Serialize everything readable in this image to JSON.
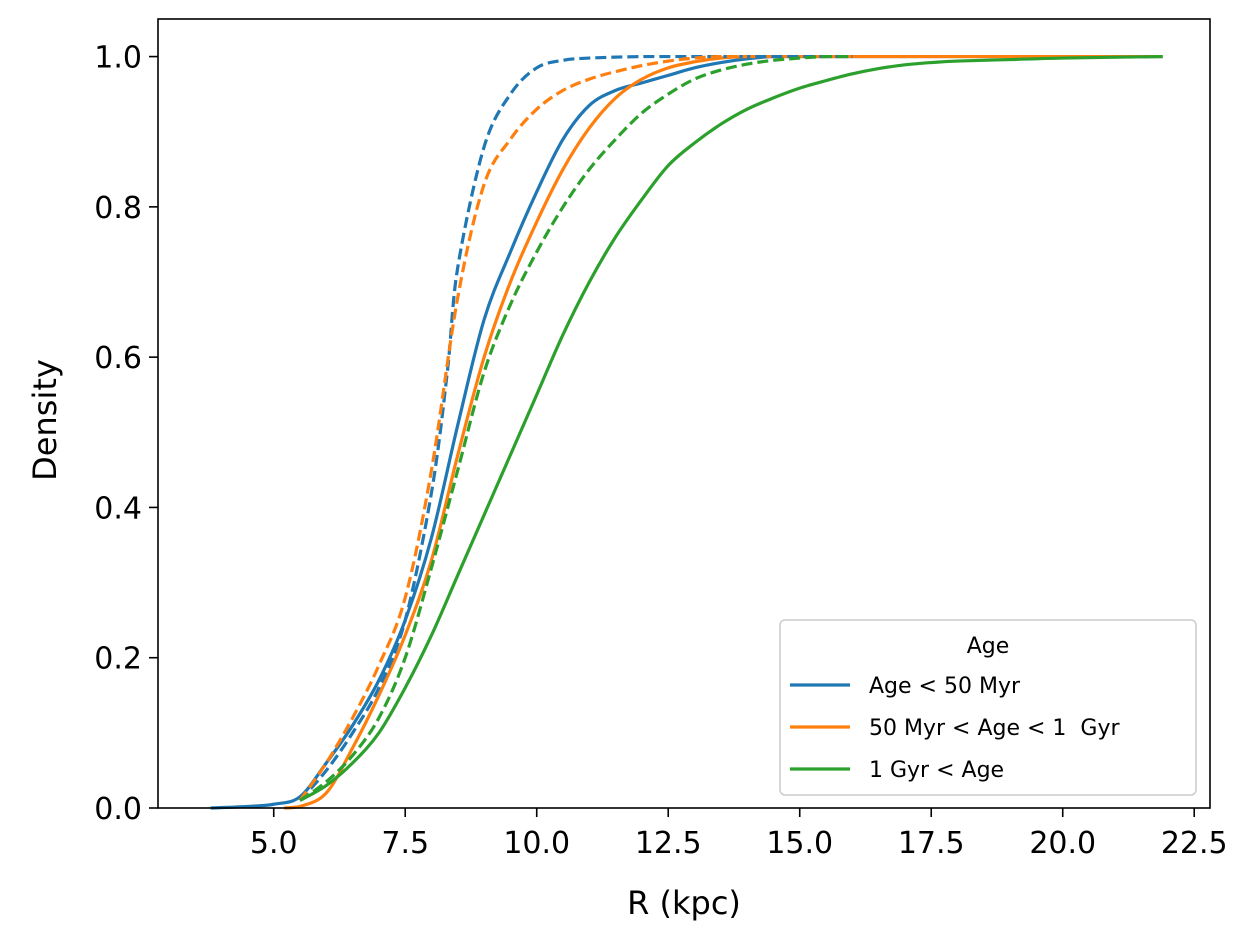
{
  "chart_data": {
    "type": "line",
    "title": "",
    "xlabel": "R (kpc)",
    "ylabel": "Density",
    "xlim": [
      2.8,
      22.8
    ],
    "ylim": [
      0.0,
      1.05
    ],
    "xticks": [
      5.0,
      7.5,
      10.0,
      12.5,
      15.0,
      17.5,
      20.0,
      22.5
    ],
    "xtick_labels": [
      "5.0",
      "7.5",
      "10.0",
      "12.5",
      "15.0",
      "17.5",
      "20.0",
      "22.5"
    ],
    "yticks": [
      0.0,
      0.2,
      0.4,
      0.6,
      0.8,
      1.0
    ],
    "ytick_labels": [
      "0.0",
      "0.2",
      "0.4",
      "0.6",
      "0.8",
      "1.0"
    ],
    "grid": false,
    "legend": {
      "title": "Age",
      "placement": "lower-right",
      "entries": [
        {
          "label": "Age < 50 Myr",
          "color": "#1f77b4"
        },
        {
          "label": "50 Myr < Age < 1  Gyr",
          "color": "#ff7f0e"
        },
        {
          "label": "1 Gyr < Age",
          "color": "#2ca02c"
        }
      ]
    },
    "series": [
      {
        "name": "Age < 50 Myr (solid)",
        "color": "#1f77b4",
        "style": "solid",
        "x": [
          3.8,
          4.5,
          5.0,
          5.5,
          6.0,
          6.5,
          7.0,
          7.5,
          8.0,
          8.5,
          9.0,
          9.5,
          10.0,
          10.5,
          11.0,
          11.5,
          12.0,
          12.5,
          13.0,
          13.5,
          14.0,
          14.5,
          15.0,
          16.0,
          18.0,
          20.0,
          21.9
        ],
        "y": [
          0.0,
          0.002,
          0.005,
          0.015,
          0.06,
          0.11,
          0.17,
          0.25,
          0.36,
          0.51,
          0.65,
          0.74,
          0.82,
          0.89,
          0.935,
          0.955,
          0.965,
          0.975,
          0.985,
          0.992,
          0.997,
          1.0,
          1.0,
          1.0,
          1.0,
          1.0,
          1.0
        ]
      },
      {
        "name": "50 Myr < Age < 1  Gyr (solid)",
        "color": "#ff7f0e",
        "style": "solid",
        "x": [
          5.2,
          5.5,
          6.0,
          6.5,
          7.0,
          7.5,
          8.0,
          8.5,
          9.0,
          9.5,
          10.0,
          10.5,
          11.0,
          11.5,
          12.0,
          12.5,
          13.0,
          13.5,
          14.0,
          15.0,
          18.0,
          21.9
        ],
        "y": [
          0.0,
          0.002,
          0.02,
          0.08,
          0.15,
          0.23,
          0.33,
          0.47,
          0.6,
          0.7,
          0.78,
          0.85,
          0.905,
          0.945,
          0.97,
          0.985,
          0.993,
          0.998,
          1.0,
          1.0,
          1.0,
          1.0
        ]
      },
      {
        "name": "1 Gyr < Age (solid)",
        "color": "#2ca02c",
        "style": "solid",
        "x": [
          5.5,
          6.0,
          6.5,
          7.0,
          7.5,
          8.0,
          8.5,
          9.0,
          9.5,
          10.0,
          10.5,
          11.0,
          11.5,
          12.0,
          12.5,
          13.0,
          13.5,
          14.0,
          14.5,
          15.0,
          15.5,
          16.0,
          16.5,
          17.0,
          17.5,
          18.0,
          19.0,
          20.0,
          21.9
        ],
        "y": [
          0.01,
          0.03,
          0.06,
          0.1,
          0.16,
          0.23,
          0.31,
          0.39,
          0.47,
          0.55,
          0.63,
          0.7,
          0.76,
          0.81,
          0.855,
          0.885,
          0.91,
          0.93,
          0.945,
          0.958,
          0.968,
          0.977,
          0.984,
          0.989,
          0.992,
          0.994,
          0.996,
          0.998,
          1.0
        ]
      },
      {
        "name": "Age < 50 Myr (dashed)",
        "color": "#1f77b4",
        "style": "dashed",
        "x": [
          5.5,
          6.0,
          6.5,
          7.0,
          7.5,
          8.0,
          8.3,
          8.5,
          9.0,
          9.5,
          10.0,
          10.5,
          11.0,
          12.0,
          13.0,
          14.0,
          15.0,
          16.0
        ],
        "y": [
          0.01,
          0.05,
          0.1,
          0.16,
          0.25,
          0.42,
          0.58,
          0.72,
          0.88,
          0.95,
          0.985,
          0.995,
          0.998,
          1.0,
          1.0,
          1.0,
          1.0,
          1.0
        ]
      },
      {
        "name": "50 Myr < Age < 1  Gyr (dashed)",
        "color": "#ff7f0e",
        "style": "dashed",
        "x": [
          5.5,
          6.0,
          6.5,
          7.0,
          7.5,
          8.0,
          8.5,
          9.0,
          9.5,
          10.0,
          10.5,
          11.0,
          11.5,
          12.0,
          12.5,
          13.0,
          13.5,
          14.0
        ],
        "y": [
          0.01,
          0.06,
          0.12,
          0.19,
          0.28,
          0.45,
          0.68,
          0.83,
          0.89,
          0.93,
          0.955,
          0.97,
          0.98,
          0.988,
          0.994,
          0.998,
          1.0,
          1.0
        ]
      },
      {
        "name": "1 Gyr < Age (dashed)",
        "color": "#2ca02c",
        "style": "dashed",
        "x": [
          5.5,
          6.0,
          6.5,
          7.0,
          7.5,
          8.0,
          8.5,
          9.0,
          9.5,
          10.0,
          10.5,
          11.0,
          11.5,
          12.0,
          12.5,
          13.0,
          13.5,
          14.0,
          14.5,
          15.0,
          15.5,
          16.0
        ],
        "y": [
          0.01,
          0.035,
          0.07,
          0.12,
          0.2,
          0.32,
          0.45,
          0.58,
          0.67,
          0.74,
          0.8,
          0.85,
          0.89,
          0.925,
          0.95,
          0.97,
          0.982,
          0.99,
          0.995,
          0.998,
          1.0,
          1.0
        ]
      }
    ]
  }
}
